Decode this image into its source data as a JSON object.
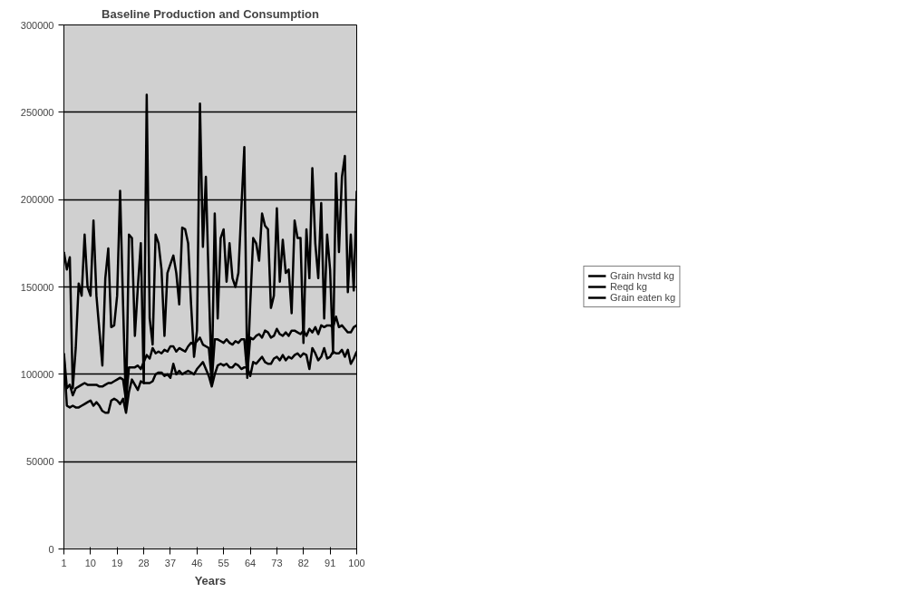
{
  "chart_data": {
    "type": "line",
    "title": "Baseline Production and Consumption",
    "xlabel": "Years",
    "x": [
      1,
      2,
      3,
      4,
      5,
      6,
      7,
      8,
      9,
      10,
      11,
      12,
      13,
      14,
      15,
      16,
      17,
      18,
      19,
      20,
      21,
      22,
      23,
      24,
      25,
      26,
      27,
      28,
      29,
      30,
      31,
      32,
      33,
      34,
      35,
      36,
      37,
      38,
      39,
      40,
      41,
      42,
      43,
      44,
      45,
      46,
      47,
      48,
      49,
      50,
      51,
      52,
      53,
      54,
      55,
      56,
      57,
      58,
      59,
      60,
      61,
      62,
      63,
      64,
      65,
      66,
      67,
      68,
      69,
      70,
      71,
      72,
      73,
      74,
      75,
      76,
      77,
      78,
      79,
      80,
      81,
      82,
      83,
      84,
      85,
      86,
      87,
      88,
      89,
      90,
      91,
      92,
      93,
      94,
      95,
      96,
      97,
      98,
      99,
      100
    ],
    "series": [
      {
        "name": "Grain hvstd kg",
        "color": "#000000",
        "values": [
          170000,
          160000,
          167000,
          92000,
          115000,
          152000,
          145000,
          180000,
          150000,
          145000,
          188000,
          145000,
          125000,
          105000,
          155000,
          172000,
          127000,
          128000,
          145000,
          205000,
          140000,
          80000,
          180000,
          178000,
          122000,
          150000,
          175000,
          95000,
          260000,
          132000,
          117000,
          180000,
          175000,
          160000,
          122000,
          158000,
          163000,
          168000,
          158000,
          140000,
          184000,
          183000,
          175000,
          140000,
          110000,
          125000,
          255000,
          173000,
          213000,
          150000,
          95000,
          192000,
          132000,
          178000,
          183000,
          153000,
          175000,
          155000,
          150000,
          158000,
          195000,
          230000,
          98000,
          140000,
          178000,
          175000,
          165000,
          192000,
          185000,
          183000,
          138000,
          145000,
          195000,
          153000,
          177000,
          158000,
          160000,
          135000,
          188000,
          178000,
          178000,
          118000,
          183000,
          155000,
          218000,
          175000,
          155000,
          198000,
          132000,
          180000,
          160000,
          112000,
          215000,
          170000,
          213000,
          225000,
          147000,
          180000,
          148000,
          205000
        ]
      },
      {
        "name": "Reqd kg",
        "color": "#000000",
        "values": [
          112000,
          92000,
          94000,
          88000,
          92000,
          93000,
          94000,
          95000,
          94000,
          94000,
          94000,
          94000,
          93000,
          93000,
          94000,
          95000,
          95000,
          96000,
          97000,
          98000,
          97000,
          85000,
          104000,
          104000,
          104000,
          105000,
          103000,
          107000,
          111000,
          109000,
          115000,
          112000,
          113000,
          112000,
          114000,
          113000,
          116000,
          116000,
          113000,
          115000,
          114000,
          113000,
          116000,
          118000,
          117000,
          119000,
          121000,
          117000,
          116000,
          115000,
          96000,
          120000,
          120000,
          119000,
          118000,
          120000,
          118000,
          117000,
          119000,
          118000,
          120000,
          120000,
          100000,
          121000,
          120000,
          122000,
          123000,
          121000,
          125000,
          124000,
          121000,
          122000,
          126000,
          123000,
          122000,
          124000,
          122000,
          125000,
          125000,
          124000,
          123000,
          125000,
          122000,
          126000,
          124000,
          127000,
          123000,
          128000,
          127000,
          128000,
          128000,
          127000,
          133000,
          127000,
          128000,
          126000,
          124000,
          124000,
          127000,
          128000
        ]
      },
      {
        "name": "Grain eaten kg",
        "color": "#000000",
        "values": [
          110000,
          82000,
          81000,
          82000,
          81000,
          81000,
          82000,
          83000,
          84000,
          85000,
          82000,
          84000,
          82000,
          79000,
          78000,
          78000,
          85000,
          86000,
          85000,
          83000,
          86000,
          78000,
          90000,
          97000,
          94000,
          91000,
          96000,
          95000,
          95000,
          95000,
          96000,
          100000,
          101000,
          101000,
          99000,
          100000,
          98000,
          106000,
          100000,
          102000,
          100000,
          101000,
          102000,
          101000,
          100000,
          103000,
          105000,
          107000,
          103000,
          99000,
          93000,
          100000,
          105000,
          106000,
          105000,
          106000,
          104000,
          104000,
          106000,
          105000,
          103000,
          104000,
          104000,
          99000,
          107000,
          106000,
          108000,
          110000,
          107000,
          106000,
          106000,
          109000,
          110000,
          108000,
          111000,
          108000,
          110000,
          109000,
          111000,
          112000,
          110000,
          112000,
          111000,
          103000,
          115000,
          112000,
          108000,
          110000,
          115000,
          109000,
          110000,
          113000,
          112000,
          112000,
          114000,
          110000,
          114000,
          106000,
          109000,
          113000
        ]
      }
    ],
    "xlim": [
      1,
      100
    ],
    "xticks": [
      1,
      10,
      19,
      28,
      37,
      46,
      55,
      64,
      73,
      82,
      91,
      100
    ],
    "ylim": [
      0,
      300000
    ],
    "yticks": [
      0,
      50000,
      100000,
      150000,
      200000,
      250000,
      300000
    ],
    "grid": "y",
    "legend": "right"
  }
}
